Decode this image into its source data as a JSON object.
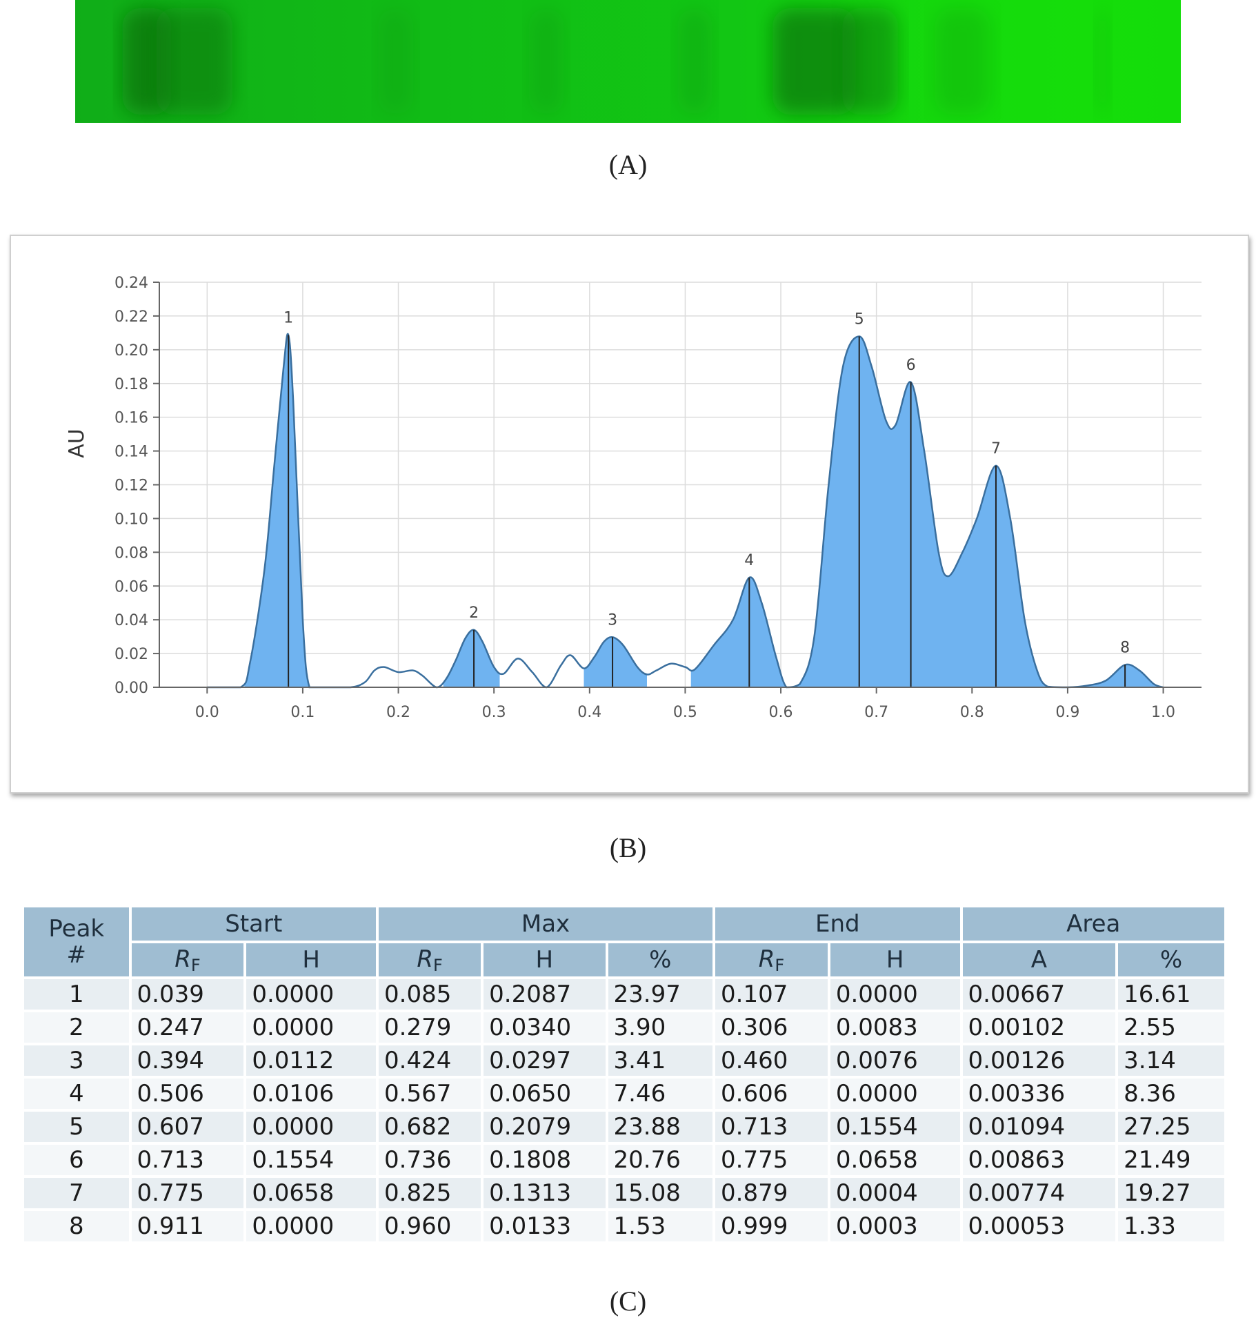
{
  "captions": {
    "a": "(A)",
    "b": "(B)",
    "c": "(C)"
  },
  "plate": {
    "background_color": "#14dc0a",
    "band_color": "#0b7a10",
    "bands_rf": [
      0.039,
      0.085,
      0.279,
      0.424,
      0.567,
      0.682,
      0.736,
      0.825,
      0.96
    ]
  },
  "chart_data": {
    "type": "area",
    "xlabel": "",
    "ylabel": "AU",
    "xlim": [
      -0.05,
      1.04
    ],
    "ylim": [
      0,
      0.24
    ],
    "x_ticks": [
      "0.0",
      "0.1",
      "0.2",
      "0.3",
      "0.4",
      "0.5",
      "0.6",
      "0.7",
      "0.8",
      "0.9",
      "1.0"
    ],
    "y_ticks": [
      "0.00",
      "0.02",
      "0.04",
      "0.06",
      "0.08",
      "0.10",
      "0.12",
      "0.14",
      "0.16",
      "0.18",
      "0.20",
      "0.22",
      "0.24"
    ],
    "grid": true,
    "fill_color": "#6fb3f0",
    "line_color": "#3a6f9e",
    "curve": {
      "x": [
        0.0,
        0.035,
        0.045,
        0.06,
        0.07,
        0.08,
        0.085,
        0.09,
        0.1,
        0.107,
        0.12,
        0.15,
        0.165,
        0.175,
        0.185,
        0.2,
        0.215,
        0.225,
        0.24,
        0.25,
        0.26,
        0.27,
        0.279,
        0.288,
        0.3,
        0.31,
        0.325,
        0.34,
        0.355,
        0.37,
        0.38,
        0.394,
        0.405,
        0.415,
        0.424,
        0.435,
        0.45,
        0.46,
        0.47,
        0.485,
        0.5,
        0.51,
        0.53,
        0.55,
        0.567,
        0.58,
        0.595,
        0.606,
        0.62,
        0.635,
        0.65,
        0.665,
        0.682,
        0.695,
        0.71,
        0.72,
        0.736,
        0.75,
        0.765,
        0.775,
        0.79,
        0.805,
        0.825,
        0.84,
        0.855,
        0.868,
        0.879,
        0.9,
        0.92,
        0.94,
        0.96,
        0.975,
        0.99,
        1.0
      ],
      "y": [
        0.0,
        0.0,
        0.015,
        0.07,
        0.13,
        0.19,
        0.2087,
        0.17,
        0.04,
        0.0,
        0.0,
        0.0,
        0.003,
        0.01,
        0.012,
        0.009,
        0.01,
        0.007,
        0.0,
        0.005,
        0.016,
        0.029,
        0.034,
        0.027,
        0.012,
        0.008,
        0.017,
        0.009,
        0.0,
        0.013,
        0.019,
        0.0112,
        0.018,
        0.027,
        0.0297,
        0.025,
        0.012,
        0.0076,
        0.01,
        0.014,
        0.012,
        0.0106,
        0.025,
        0.04,
        0.065,
        0.05,
        0.018,
        0.0,
        0.002,
        0.03,
        0.12,
        0.19,
        0.2079,
        0.19,
        0.158,
        0.1554,
        0.1808,
        0.14,
        0.08,
        0.0658,
        0.08,
        0.1,
        0.1313,
        0.1,
        0.04,
        0.01,
        0.0004,
        0.0,
        0.001,
        0.004,
        0.0133,
        0.01,
        0.002,
        0.0
      ]
    },
    "peaks": [
      {
        "label": "1",
        "x": 0.085,
        "y": 0.2087
      },
      {
        "label": "2",
        "x": 0.279,
        "y": 0.034
      },
      {
        "label": "3",
        "x": 0.424,
        "y": 0.0297
      },
      {
        "label": "4",
        "x": 0.567,
        "y": 0.065
      },
      {
        "label": "5",
        "x": 0.682,
        "y": 0.2079
      },
      {
        "label": "6",
        "x": 0.736,
        "y": 0.1808
      },
      {
        "label": "7",
        "x": 0.825,
        "y": 0.1313
      },
      {
        "label": "8",
        "x": 0.96,
        "y": 0.0133
      }
    ],
    "shaded_ranges": [
      [
        0.039,
        0.107
      ],
      [
        0.247,
        0.306
      ],
      [
        0.394,
        0.46
      ],
      [
        0.506,
        0.879
      ],
      [
        0.911,
        0.999
      ]
    ]
  },
  "table": {
    "group_headers": {
      "peak_line1": "Peak",
      "peak_line2": "#",
      "start": "Start",
      "max": "Max",
      "end": "End",
      "area": "Area"
    },
    "sub_headers": {
      "rf_main": "R",
      "rf_sub": "F",
      "h": "H",
      "pct": "%",
      "a": "A"
    },
    "rows": [
      [
        "1",
        "0.039",
        "0.0000",
        "0.085",
        "0.2087",
        "23.97",
        "0.107",
        "0.0000",
        "0.00667",
        "16.61"
      ],
      [
        "2",
        "0.247",
        "0.0000",
        "0.279",
        "0.0340",
        "3.90",
        "0.306",
        "0.0083",
        "0.00102",
        "2.55"
      ],
      [
        "3",
        "0.394",
        "0.0112",
        "0.424",
        "0.0297",
        "3.41",
        "0.460",
        "0.0076",
        "0.00126",
        "3.14"
      ],
      [
        "4",
        "0.506",
        "0.0106",
        "0.567",
        "0.0650",
        "7.46",
        "0.606",
        "0.0000",
        "0.00336",
        "8.36"
      ],
      [
        "5",
        "0.607",
        "0.0000",
        "0.682",
        "0.2079",
        "23.88",
        "0.713",
        "0.1554",
        "0.01094",
        "27.25"
      ],
      [
        "6",
        "0.713",
        "0.1554",
        "0.736",
        "0.1808",
        "20.76",
        "0.775",
        "0.0658",
        "0.00863",
        "21.49"
      ],
      [
        "7",
        "0.775",
        "0.0658",
        "0.825",
        "0.1313",
        "15.08",
        "0.879",
        "0.0004",
        "0.00774",
        "19.27"
      ],
      [
        "8",
        "0.911",
        "0.0000",
        "0.960",
        "0.0133",
        "1.53",
        "0.999",
        "0.0003",
        "0.00053",
        "1.33"
      ]
    ]
  }
}
